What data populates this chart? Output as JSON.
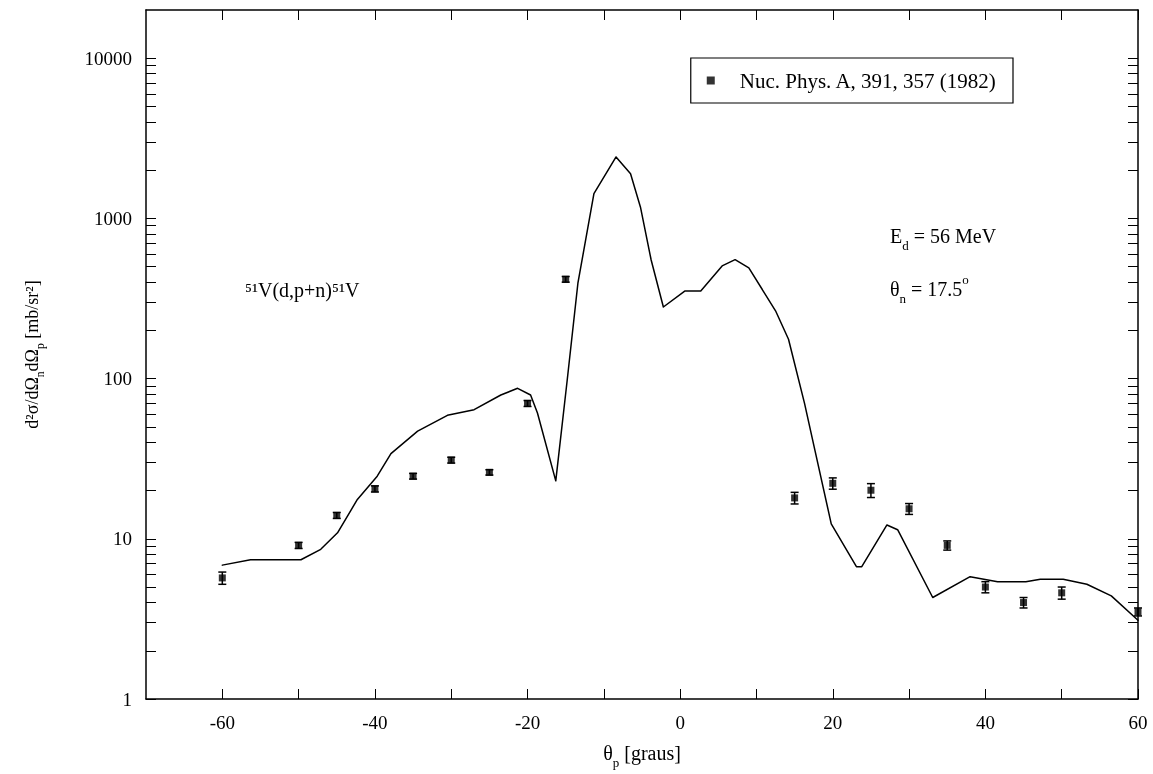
{
  "chart_data": {
    "type": "scatter",
    "xlabel": "θ$_{p}$ [graus]",
    "ylabel": "d²σ/dΩ$_{n}$dΩ$_{p}$ [mb/sr²]",
    "annotations": [
      "⁵¹V(d,p+n)⁵¹V",
      "E$_{d}$ = 56 MeV",
      "θ$_{n}$ = 17.5$^{o}$"
    ],
    "log": "y",
    "legend": "top right",
    "grid": false,
    "marker": "square",
    "xlim": [
      -70,
      60
    ],
    "xticks": [
      -60,
      {
        "value": -50,
        "label": null
      },
      -40,
      {
        "value": -30,
        "label": null
      },
      -20,
      {
        "value": -10,
        "label": null
      },
      0,
      {
        "value": 10,
        "label": null
      },
      20,
      {
        "value": 30,
        "label": null
      },
      40,
      {
        "value": 50,
        "label": null
      },
      60
    ],
    "ylim": [
      1,
      20000
    ],
    "yticks": [
      1,
      {
        "value": 2,
        "label": null
      },
      {
        "value": 3,
        "label": null
      },
      {
        "value": 4,
        "label": null
      },
      {
        "value": 5,
        "label": null
      },
      {
        "value": 6,
        "label": null
      },
      {
        "value": 7,
        "label": null
      },
      {
        "value": 8,
        "label": null
      },
      {
        "value": 9,
        "label": null
      },
      10,
      {
        "value": 20,
        "label": null
      },
      {
        "value": 30,
        "label": null
      },
      {
        "value": 40,
        "label": null
      },
      {
        "value": 50,
        "label": null
      },
      {
        "value": 60,
        "label": null
      },
      {
        "value": 70,
        "label": null
      },
      {
        "value": 80,
        "label": null
      },
      {
        "value": 90,
        "label": null
      },
      100,
      {
        "value": 200,
        "label": null
      },
      {
        "value": 300,
        "label": null
      },
      {
        "value": 400,
        "label": null
      },
      {
        "value": 500,
        "label": null
      },
      {
        "value": 600,
        "label": null
      },
      {
        "value": 700,
        "label": null
      },
      {
        "value": 800,
        "label": null
      },
      {
        "value": 900,
        "label": null
      },
      1000,
      {
        "value": 2000,
        "label": null
      },
      {
        "value": 3000,
        "label": null
      },
      {
        "value": 4000,
        "label": null
      },
      {
        "value": 5000,
        "label": null
      },
      {
        "value": 6000,
        "label": null
      },
      {
        "value": 7000,
        "label": null
      },
      {
        "value": 8000,
        "label": null
      },
      {
        "value": 9000,
        "label": null
      },
      10000
    ],
    "series": [
      {
        "name": "Nuc. Phys. A, 391, 357 (1982)",
        "color": "#000000",
        "x": [
          -60,
          -50,
          -45,
          -40,
          -35,
          -30,
          -25,
          -20,
          -15,
          15,
          20,
          25,
          30,
          35,
          40,
          45,
          50,
          60
        ],
        "values": [
          5.7,
          9.1,
          14,
          20.5,
          24.6,
          31,
          26,
          70,
          417,
          18,
          22.2,
          20.1,
          15.4,
          9.1,
          5.0,
          4.0,
          4.6,
          3.5
        ],
        "errors": [
          0.5,
          0.4,
          0.6,
          0.9,
          1,
          1.3,
          1,
          3,
          17,
          1.5,
          1.8,
          2,
          1.2,
          0.6,
          0.4,
          0.3,
          0.4,
          0.2
        ]
      },
      {
        "type": "line",
        "color": "#000000",
        "marker": "none",
        "line_style": "solid",
        "x": [
          -60,
          -56.3,
          -54.5,
          -49.7,
          -47.1,
          -44.9,
          -42.3,
          -39.7,
          -37.9,
          -34.4,
          -30.5,
          -27,
          -23.5,
          -21.3,
          -19.6,
          -18.7,
          -16.3,
          -14.8,
          -13.4,
          -11.3,
          -8.4,
          -6.5,
          -5.2,
          -3.8,
          -2.2,
          0.6,
          2.7,
          5.5,
          7.2,
          9,
          12.5,
          14.2,
          16.3,
          17.7,
          19.8,
          23.1,
          23.8,
          27.1,
          28.5,
          33.1,
          38,
          41.6,
          45.3,
          47.2,
          50.2,
          53.3,
          56.5,
          60
        ],
        "values": [
          6.85,
          7.4,
          7.4,
          7.4,
          8.6,
          10.9,
          17.6,
          24.6,
          34,
          47,
          59,
          64,
          79,
          87,
          79,
          61,
          23,
          98,
          394,
          1430,
          2420,
          1900,
          1175,
          550,
          280,
          352,
          352,
          505,
          553,
          491,
          265,
          176,
          70,
          35,
          12.4,
          6.7,
          6.7,
          12.2,
          11.4,
          4.3,
          5.8,
          5.4,
          5.4,
          5.6,
          5.6,
          5.2,
          4.4,
          3.1
        ]
      }
    ]
  }
}
